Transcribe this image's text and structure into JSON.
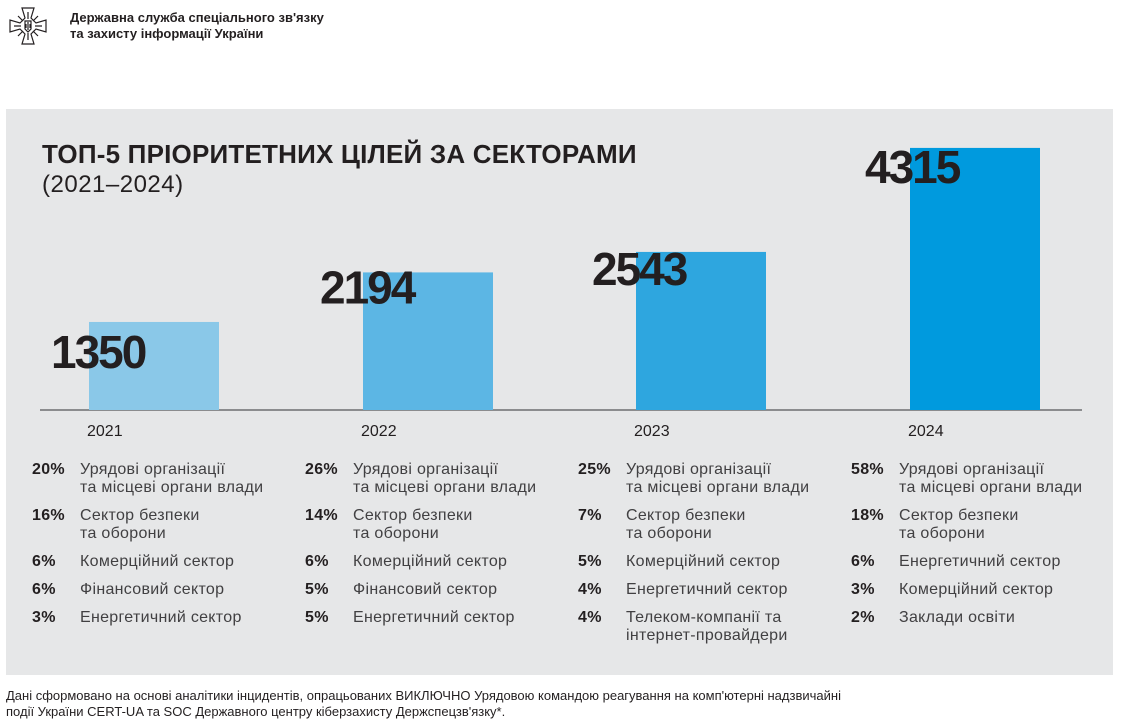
{
  "header": {
    "org_line1": "Державна служба спеціального зв'язку",
    "org_line2": "та захисту інформації України",
    "logo_icon": "coat-of-arms-cross-icon"
  },
  "chart_data": {
    "type": "bar",
    "title": "ТОП-5 ПРІОРИТЕТНИХ ЦІЛЕЙ ЗА СЕКТОРАМИ",
    "subtitle": "(2021–2024)",
    "categories": [
      "2021",
      "2022",
      "2023",
      "2024"
    ],
    "values": [
      1350,
      2194,
      2543,
      4315
    ],
    "colors": [
      "#8ac8e8",
      "#5cb6e4",
      "#2ea6df",
      "#009ade"
    ],
    "xlabel": "",
    "ylabel": "",
    "grid": false,
    "legend": "none",
    "sectors": [
      {
        "year": "2021",
        "items": [
          {
            "pct": "20%",
            "label1": "Урядові організації",
            "label2": "та місцеві органи влади"
          },
          {
            "pct": "16%",
            "label1": "Сектор безпеки",
            "label2": "та оборони"
          },
          {
            "pct": "6%",
            "label1": "Комерційний сектор",
            "label2": ""
          },
          {
            "pct": "6%",
            "label1": "Фінансовий сектор",
            "label2": ""
          },
          {
            "pct": "3%",
            "label1": "Енергетичний сектор",
            "label2": ""
          }
        ]
      },
      {
        "year": "2022",
        "items": [
          {
            "pct": "26%",
            "label1": "Урядові організації",
            "label2": "та місцеві органи влади"
          },
          {
            "pct": "14%",
            "label1": "Сектор безпеки",
            "label2": "та оборони"
          },
          {
            "pct": "6%",
            "label1": "Комерційний сектор",
            "label2": ""
          },
          {
            "pct": "5%",
            "label1": "Фінансовий сектор",
            "label2": ""
          },
          {
            "pct": "5%",
            "label1": "Енергетичний сектор",
            "label2": ""
          }
        ]
      },
      {
        "year": "2023",
        "items": [
          {
            "pct": "25%",
            "label1": "Урядові організації",
            "label2": "та місцеві органи влади"
          },
          {
            "pct": "7%",
            "label1": "Сектор безпеки",
            "label2": "та оборони"
          },
          {
            "pct": "5%",
            "label1": "Комерційний сектор",
            "label2": ""
          },
          {
            "pct": "4%",
            "label1": "Енергетичний сектор",
            "label2": ""
          },
          {
            "pct": "4%",
            "label1": "Телеком-компанії та",
            "label2": "інтернет-провайдери"
          }
        ]
      },
      {
        "year": "2024",
        "items": [
          {
            "pct": "58%",
            "label1": "Урядові організації",
            "label2": "та місцеві органи влади"
          },
          {
            "pct": "18%",
            "label1": "Сектор безпеки",
            "label2": "та оборони"
          },
          {
            "pct": "6%",
            "label1": "Енергетичний сектор",
            "label2": ""
          },
          {
            "pct": "3%",
            "label1": "Комерційний сектор",
            "label2": ""
          },
          {
            "pct": "2%",
            "label1": "Заклади освіти",
            "label2": ""
          }
        ]
      }
    ]
  },
  "footnote": {
    "line1": "Дані сформовано на основі аналітики інцидентів, опрацьованих  ВИКЛЮЧНО Урядовою командою реагування на комп'ютерні надзвичайні",
    "line2": "події України CERT-UA та SOC Державного центру кіберзахисту Держспецзв'язку*."
  }
}
